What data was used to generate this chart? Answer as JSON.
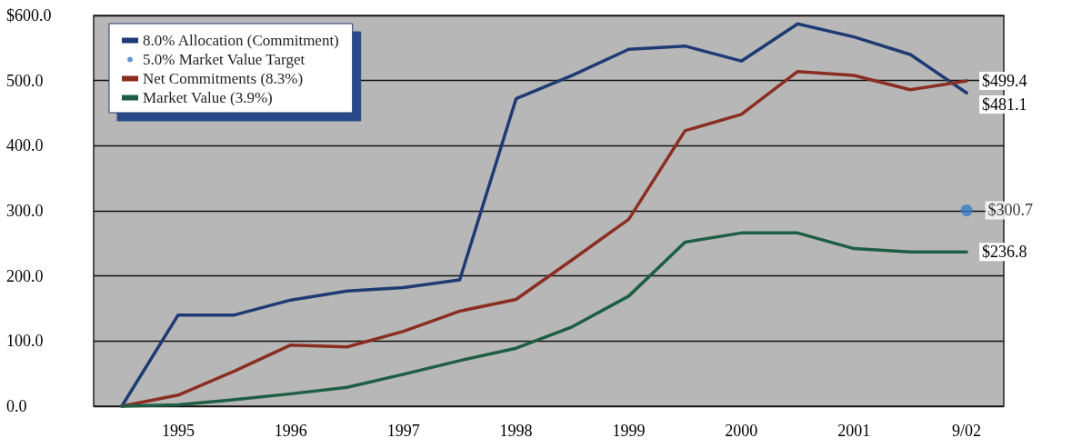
{
  "chart_data": {
    "type": "line",
    "x": [
      1994.5,
      1995,
      1995.5,
      1996,
      1996.5,
      1997,
      1997.5,
      1998,
      1998.5,
      1999,
      1999.5,
      2000,
      2000.5,
      2001,
      2001.5,
      2002
    ],
    "xlim": [
      1994.25,
      2002.33
    ],
    "xticks": [
      1995,
      1996,
      1997,
      1998,
      1999,
      2000,
      2001,
      {
        "value": 2002,
        "label": "9/02"
      }
    ],
    "ylim": [
      0,
      600
    ],
    "yticks": [
      {
        "value": 0,
        "label": "0.0"
      },
      {
        "value": 100,
        "label": "100.0"
      },
      {
        "value": 200,
        "label": "200.0"
      },
      {
        "value": 300,
        "label": "300.0"
      },
      {
        "value": 400,
        "label": "400.0"
      },
      {
        "value": 500,
        "label": "500.0"
      },
      {
        "value": 600,
        "label": "$600.0"
      }
    ],
    "grid": "y",
    "legend": "top left",
    "marker": "none",
    "line_style": "solid",
    "series": [
      {
        "name": "8.0% Allocation (Commitment)",
        "color": "#1f3b73",
        "values": [
          0,
          140,
          140,
          163,
          177,
          182,
          194,
          472,
          508,
          548,
          553,
          530,
          587,
          567,
          540,
          481.1
        ],
        "value_labels": [
          null,
          null,
          null,
          null,
          null,
          null,
          null,
          null,
          null,
          null,
          null,
          null,
          null,
          null,
          null,
          "$481.1"
        ]
      },
      {
        "name": "5.0% Market Value Target",
        "type": "scatter",
        "marker": "circle",
        "color": "#3a7cc4",
        "x": [
          2002
        ],
        "values": [
          300.7
        ],
        "value_labels": [
          "$300.7"
        ]
      },
      {
        "name": "Net Commitments (8.3%)",
        "color": "#8b2e22",
        "values": [
          0,
          17,
          54,
          94,
          91,
          115,
          146,
          164,
          225,
          287,
          423,
          448,
          514,
          508,
          486,
          499.4
        ],
        "value_labels": [
          null,
          null,
          null,
          null,
          null,
          null,
          null,
          null,
          null,
          null,
          null,
          null,
          null,
          null,
          null,
          "$499.4"
        ]
      },
      {
        "name": "Market Value (3.9%)",
        "color": "#1d5e44",
        "values": [
          0,
          2,
          10,
          19,
          29,
          49,
          70,
          89,
          122,
          169,
          252,
          266,
          266,
          242,
          237,
          236.8
        ],
        "value_labels": [
          null,
          null,
          null,
          null,
          null,
          null,
          null,
          null,
          null,
          null,
          null,
          null,
          null,
          null,
          null,
          "$236.8"
        ]
      }
    ]
  }
}
